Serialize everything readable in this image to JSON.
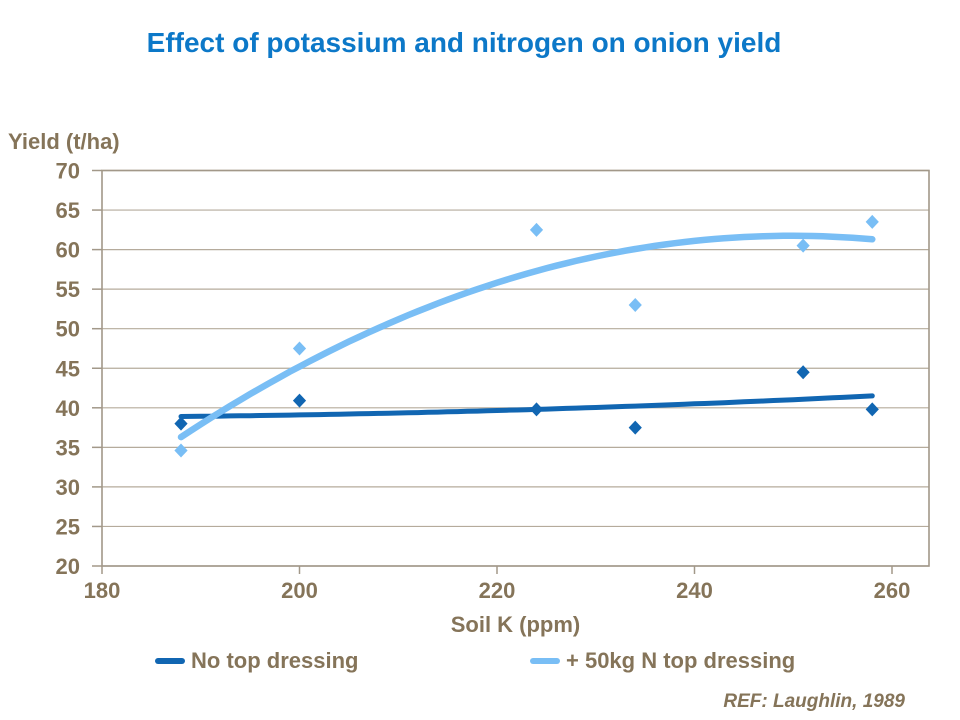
{
  "chart_data": {
    "type": "scatter",
    "title": "Effect of potassium and nitrogen on onion yield",
    "title_color": "#0c78c8",
    "xlabel": "Soil K (ppm)",
    "ylabel": "Yield (t/ha)",
    "ref_note": "REF: Laughlin, 1989",
    "text_color": "#857459",
    "grid_color": "#b5ab9c",
    "axis_color": "#a29889",
    "grid": "horizontal-only",
    "legend_position": "bottom",
    "xlim": [
      180,
      264
    ],
    "ylim": [
      20,
      70
    ],
    "x_ticks": [
      180,
      200,
      220,
      240,
      260
    ],
    "y_ticks": [
      20,
      25,
      30,
      35,
      40,
      45,
      50,
      55,
      60,
      65,
      70
    ],
    "series": [
      {
        "name": "No top dressing",
        "color": "#1166b2",
        "marker": "diamond",
        "points": [
          [
            188,
            38.0
          ],
          [
            200,
            40.9
          ],
          [
            224,
            39.8
          ],
          [
            234,
            37.5
          ],
          [
            251,
            44.5
          ],
          [
            258,
            39.8
          ]
        ],
        "trend": {
          "type": "quadratic",
          "x_origin": 188,
          "coeffs": [
            38.9,
            0.0122,
            0.000357
          ],
          "domain": [
            188,
            258
          ],
          "width": 5
        }
      },
      {
        "name": "+ 50kg N top dressing",
        "color": "#79bef5",
        "marker": "diamond",
        "points": [
          [
            188,
            34.6
          ],
          [
            200,
            47.5
          ],
          [
            224,
            62.5
          ],
          [
            234,
            53.0
          ],
          [
            251,
            60.5
          ],
          [
            258,
            63.5
          ]
        ],
        "trend": {
          "type": "quadratic",
          "x_origin": 188,
          "coeffs": [
            36.3,
            0.8227,
            -0.00665
          ],
          "domain": [
            188,
            258
          ],
          "width": 6.5
        }
      }
    ]
  }
}
